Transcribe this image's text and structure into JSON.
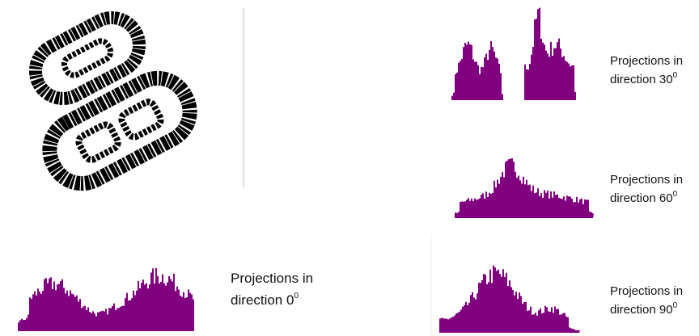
{
  "panels": [
    {
      "line1": "Projections in",
      "line2": "direction 30",
      "sup": "0"
    },
    {
      "line1": "Projections in",
      "line2": "direction 60",
      "sup": "0"
    },
    {
      "line1": "Projections in",
      "line2": "direction 0",
      "sup": "0"
    },
    {
      "line1": "Projections in",
      "line2": "direction 90",
      "sup": "0"
    }
  ]
}
